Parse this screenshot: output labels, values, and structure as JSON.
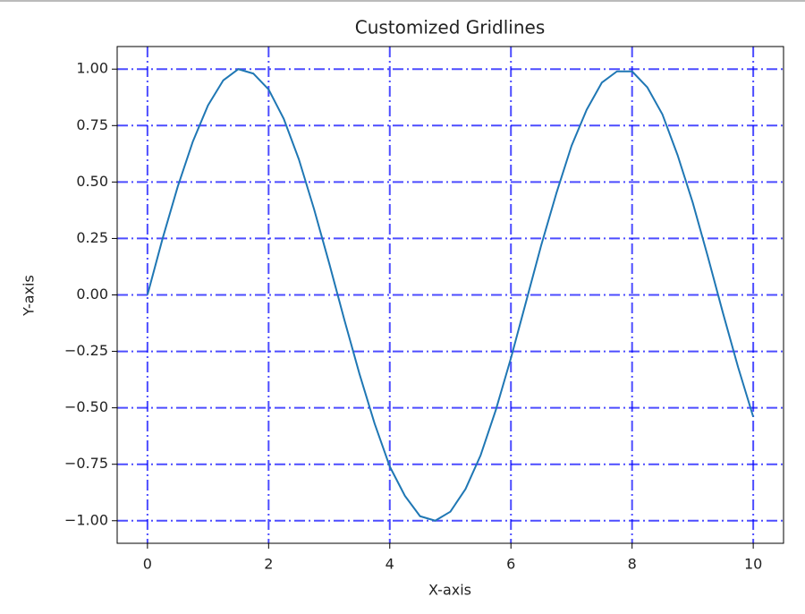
{
  "chart_data": {
    "type": "line",
    "title": "Customized Gridlines",
    "x_label": "X-axis",
    "y_label": "Y-axis",
    "x": [
      0,
      0.25,
      0.5,
      0.75,
      1,
      1.25,
      1.5,
      1.75,
      2,
      2.25,
      2.5,
      2.75,
      3,
      3.25,
      3.5,
      3.75,
      4,
      4.25,
      4.5,
      4.75,
      5,
      5.25,
      5.5,
      5.75,
      6,
      6.25,
      6.5,
      6.75,
      7,
      7.25,
      7.5,
      7.75,
      8,
      8.25,
      8.5,
      8.75,
      9,
      9.25,
      9.5,
      9.75,
      10
    ],
    "values": [
      0,
      0.25,
      0.48,
      0.68,
      0.84,
      0.95,
      1.0,
      0.98,
      0.91,
      0.78,
      0.6,
      0.38,
      0.14,
      -0.11,
      -0.35,
      -0.57,
      -0.76,
      -0.89,
      -0.98,
      -1.0,
      -0.96,
      -0.86,
      -0.71,
      -0.51,
      -0.28,
      -0.03,
      0.22,
      0.45,
      0.66,
      0.82,
      0.94,
      0.99,
      0.99,
      0.92,
      0.8,
      0.62,
      0.41,
      0.17,
      -0.08,
      -0.32,
      -0.54
    ],
    "color": "#1f77b4",
    "xlim": [
      -0.5,
      10.5
    ],
    "xticks": [
      0,
      2,
      4,
      6,
      8,
      10
    ],
    "ylim": [
      -1.1,
      1.1
    ],
    "yticks": [
      {
        "value": -1,
        "label": "−1.00"
      },
      {
        "value": -0.75,
        "label": "−0.75"
      },
      {
        "value": -0.5,
        "label": "−0.50"
      },
      {
        "value": -0.25,
        "label": "−0.25"
      },
      {
        "value": 0,
        "label": "0.00"
      },
      {
        "value": 0.25,
        "label": "0.25"
      },
      {
        "value": 0.5,
        "label": "0.50"
      },
      {
        "value": 0.75,
        "label": "0.75"
      },
      {
        "value": 1,
        "label": "1.00"
      }
    ],
    "grid": true,
    "grid_color": "#0000ff",
    "grid_style": "dashdot"
  }
}
